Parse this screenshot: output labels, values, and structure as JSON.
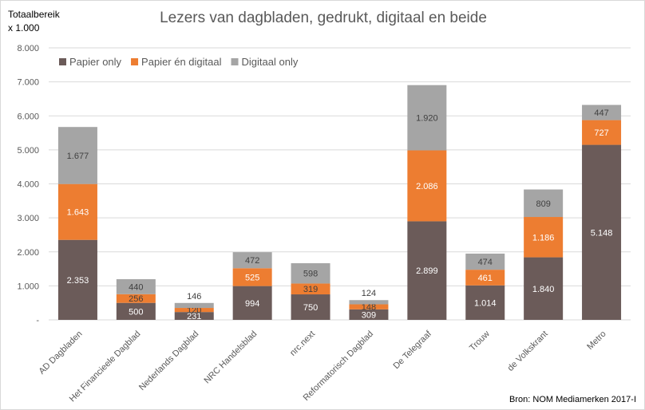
{
  "chart_data": {
    "type": "bar",
    "stacked": true,
    "title": "Lezers van dagbladen, gedrukt, digitaal en beide",
    "ylabel_line1": "Totaalbereik",
    "ylabel_line2": "x 1.000",
    "source": "Bron: NOM Mediamerken 2017-I",
    "ylim": [
      0,
      8000
    ],
    "yticks": [
      "-",
      "1.000",
      "2.000",
      "3.000",
      "4.000",
      "5.000",
      "6.000",
      "7.000",
      "8.000"
    ],
    "legend_position": "top-left",
    "gridlines": true,
    "categories": [
      "AD Dagbladen",
      "Het Financieele Dagblad",
      "Nederlands Dagblad",
      "NRC Handelsblad",
      "nrc.next",
      "Reformatorisch Dagblad",
      "De Telegraaf",
      "Trouw",
      "de Volkskrant",
      "Metro"
    ],
    "series": [
      {
        "name": "Papier only",
        "color": "#6b5b59",
        "values": [
          2353,
          500,
          231,
          994,
          750,
          309,
          2899,
          1014,
          1840,
          5148
        ],
        "labels": [
          "2.353",
          "500",
          "231",
          "994",
          "750",
          "309",
          "2.899",
          "1.014",
          "1.840",
          "5.148"
        ]
      },
      {
        "name": "Papier én digitaal",
        "color": "#ed7d31",
        "values": [
          1643,
          256,
          120,
          525,
          319,
          148,
          2086,
          461,
          1186,
          727
        ],
        "labels": [
          "1.643",
          "256",
          "120",
          "525",
          "319",
          "148",
          "2.086",
          "461",
          "1.186",
          "727"
        ]
      },
      {
        "name": "Digitaal only",
        "color": "#a5a5a5",
        "values": [
          1677,
          440,
          146,
          472,
          598,
          124,
          1920,
          474,
          809,
          447
        ],
        "labels": [
          "1.677",
          "440",
          "146",
          "472",
          "598",
          "124",
          "1.920",
          "474",
          "809",
          "447"
        ]
      }
    ]
  }
}
